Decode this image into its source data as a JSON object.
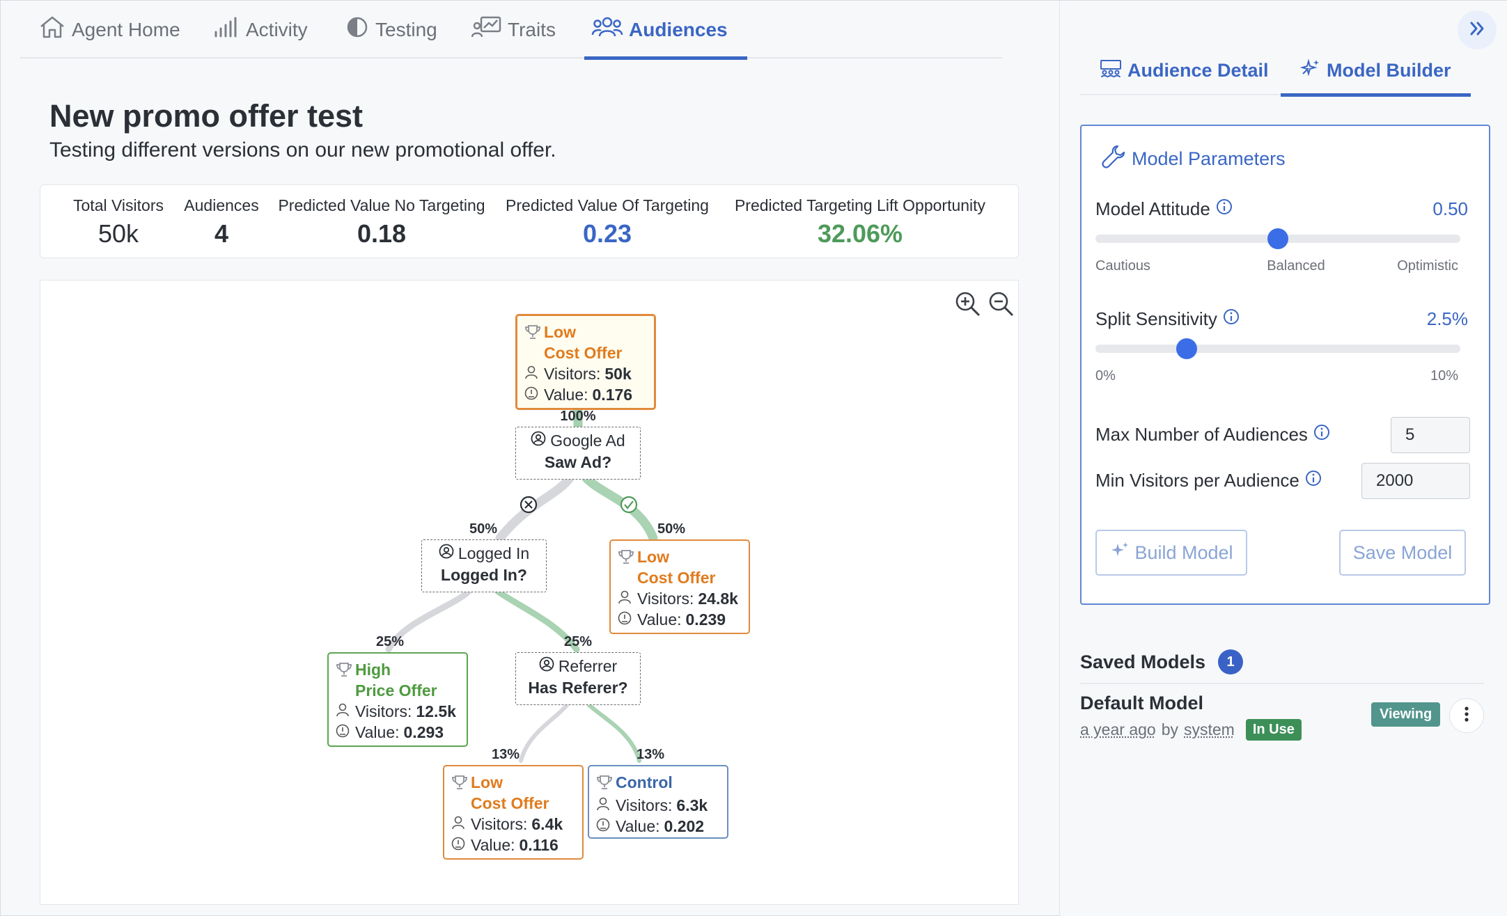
{
  "nav": {
    "tabs": [
      {
        "label": "Agent Home",
        "icon": "home-icon"
      },
      {
        "label": "Activity",
        "icon": "bar-chart-icon"
      },
      {
        "label": "Testing",
        "icon": "half-circle-icon"
      },
      {
        "label": "Traits",
        "icon": "trait-chart-icon"
      },
      {
        "label": "Audiences",
        "icon": "users-icon",
        "active": true
      }
    ]
  },
  "page": {
    "title": "New promo offer test",
    "subtitle": "Testing different versions on our new promotional offer."
  },
  "stats": [
    {
      "label": "Total Visitors",
      "value": "50k"
    },
    {
      "label": "Audiences",
      "value": "4"
    },
    {
      "label": "Predicted Value No Targeting",
      "value": "0.18"
    },
    {
      "label": "Predicted Value Of Targeting",
      "value": "0.23",
      "color": "#3a66c4"
    },
    {
      "label": "Predicted Targeting Lift Opportunity",
      "value": "32.06%",
      "color": "#4e9a5a"
    }
  ],
  "tree": {
    "root": {
      "title1": "Low",
      "title2": "Cost Offer",
      "visitors_label": "Visitors:",
      "visitors": "50k",
      "value_label": "Value:",
      "value": "0.176"
    },
    "root_pct": "100%",
    "split1": {
      "attr": "Google Ad",
      "question": "Saw Ad?"
    },
    "split1_no_pct": "50%",
    "split1_yes_pct": "50%",
    "leaf_saw_ad": {
      "title1": "Low",
      "title2": "Cost Offer",
      "visitors_label": "Visitors:",
      "visitors": "24.8k",
      "value_label": "Value:",
      "value": "0.239"
    },
    "split2": {
      "attr": "Logged In",
      "question": "Logged In?"
    },
    "split2_no_pct": "25%",
    "split2_yes_pct": "25%",
    "leaf_high": {
      "title1": "High",
      "title2": "Price Offer",
      "visitors_label": "Visitors:",
      "visitors": "12.5k",
      "value_label": "Value:",
      "value": "0.293"
    },
    "split3": {
      "attr": "Referrer",
      "question": "Has Referer?"
    },
    "split3_no_pct": "13%",
    "split3_yes_pct": "13%",
    "leaf_low2": {
      "title1": "Low",
      "title2": "Cost Offer",
      "visitors_label": "Visitors:",
      "visitors": "6.4k",
      "value_label": "Value:",
      "value": "0.116"
    },
    "leaf_control": {
      "title1": "Control",
      "visitors_label": "Visitors:",
      "visitors": "6.3k",
      "value_label": "Value:",
      "value": "0.202"
    }
  },
  "right": {
    "tabs": [
      {
        "label": "Audience Detail",
        "icon": "audience-icon"
      },
      {
        "label": "Model Builder",
        "icon": "sparkle-icon",
        "active": true
      }
    ],
    "params": {
      "title": "Model Parameters",
      "attitude": {
        "label": "Model Attitude",
        "value": "0.50",
        "level": 0.5,
        "ticks": [
          "Cautious",
          "Balanced",
          "Optimistic"
        ]
      },
      "sensitivity": {
        "label": "Split Sensitivity",
        "value": "2.5%",
        "level": 0.25,
        "ticks": [
          "0%",
          "10%"
        ]
      },
      "max_audiences": {
        "label": "Max Number of Audiences",
        "value": "5"
      },
      "min_visitors": {
        "label": "Min Visitors per Audience",
        "value": "2000"
      },
      "build_label": "Build Model",
      "save_label": "Save Model"
    },
    "saved": {
      "title": "Saved Models",
      "count": "1",
      "models": [
        {
          "name": "Default Model",
          "time": "a year ago",
          "by": "by",
          "author": "system",
          "status": "In Use",
          "viewing": "Viewing"
        }
      ]
    }
  },
  "colors": {
    "accent": "#3a66c4",
    "orange": "#e07b1e",
    "green": "#4e9a3f",
    "link_green": "#8cc49a",
    "link_gray": "#d5d7db"
  }
}
